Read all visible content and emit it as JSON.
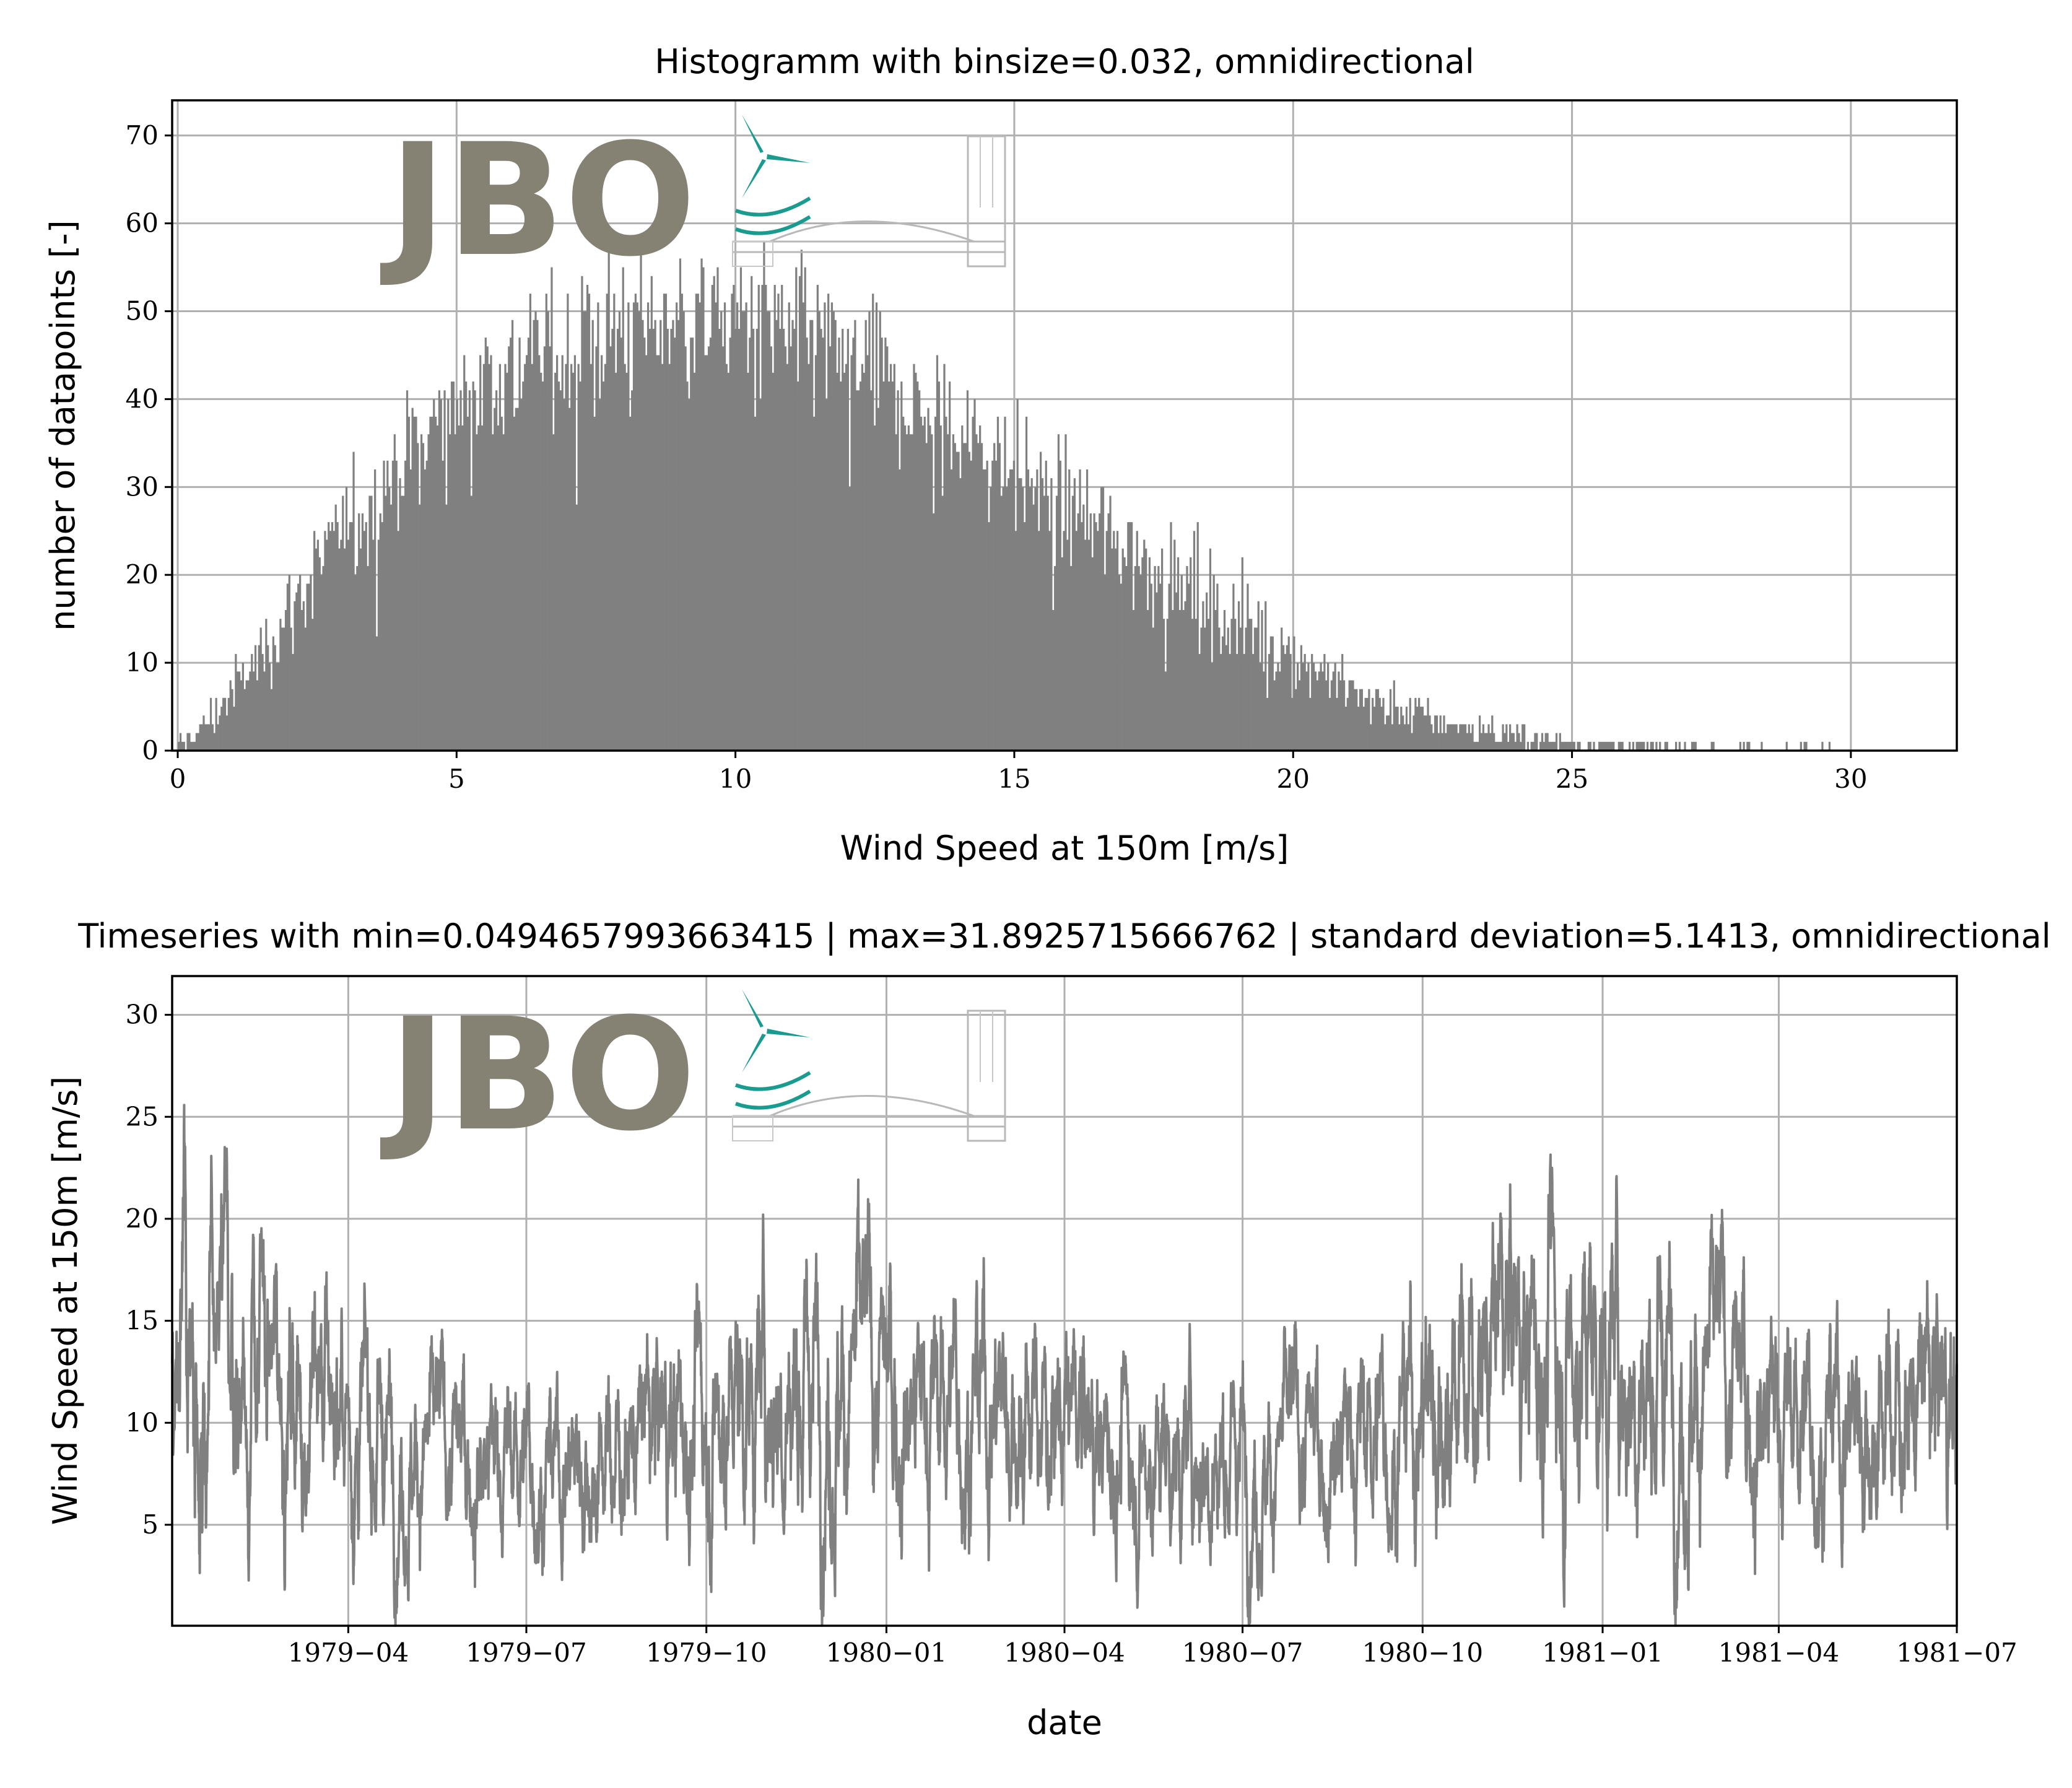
{
  "chart_data": [
    {
      "type": "bar",
      "title": "Histogramm with binsize=0.032, omnidirectional",
      "xlabel": "Wind Speed at 150m [m/s]",
      "ylabel": "number of datapoints [-]",
      "xlim": [
        -0.1,
        31.9
      ],
      "ylim": [
        0,
        74
      ],
      "xticks": [
        0,
        5,
        10,
        15,
        20,
        25,
        30
      ],
      "yticks": [
        0,
        10,
        20,
        30,
        40,
        50,
        60,
        70
      ],
      "grid": true,
      "bar_color": "#808080",
      "binsize": 0.032,
      "envelope_x": [
        0,
        0.5,
        1.0,
        1.5,
        2.0,
        2.5,
        3.0,
        3.5,
        4.0,
        4.5,
        5.0,
        5.5,
        6.0,
        6.5,
        7.0,
        7.5,
        8.0,
        8.5,
        9.0,
        9.5,
        10.0,
        10.5,
        11.0,
        11.5,
        12.0,
        12.5,
        13.0,
        13.5,
        14.0,
        14.5,
        15.0,
        15.5,
        16.0,
        16.5,
        17.0,
        17.5,
        18.0,
        18.5,
        19.0,
        19.5,
        20.0,
        20.5,
        21.0,
        21.5,
        22.0,
        22.5,
        23.0,
        23.5,
        24.0,
        24.5,
        25.0,
        25.5,
        26.0,
        26.5,
        27.0,
        27.5,
        28.0,
        28.5,
        29.0,
        29.5,
        30.0
      ],
      "envelope_y": [
        0.5,
        3,
        7,
        11,
        16,
        21,
        25,
        29,
        33,
        36,
        40,
        42,
        44,
        45,
        46,
        47,
        48,
        49,
        49,
        49,
        49,
        48,
        47,
        46,
        44,
        42,
        40,
        38,
        36,
        34,
        32,
        29,
        27,
        25,
        23,
        21,
        19,
        17,
        15,
        13,
        11,
        9,
        7,
        5.5,
        4.5,
        3.5,
        2.8,
        2.2,
        1.6,
        1.2,
        0.9,
        0.7,
        0.5,
        0.4,
        0.3,
        0.2,
        0.15,
        0.1,
        0.07,
        0.05,
        0.02
      ]
    },
    {
      "type": "line",
      "title": "Timeseries with min=0.0494657993663415 | max=31.8925715666762 | standard deviation=5.1413, omnidirectional",
      "xlabel": "date",
      "ylabel": "Wind Speed at 150m [m/s]",
      "xlim": [
        "1979-01-01",
        "1981-07-01"
      ],
      "ylim": [
        0.05,
        31.9
      ],
      "xticks": [
        "1979−04",
        "1979−07",
        "1979−10",
        "1980−01",
        "1980−04",
        "1980−07",
        "1980−10",
        "1981−01",
        "1981−04",
        "1981−07"
      ],
      "xtick_dates": [
        "1979-04-01",
        "1979-07-01",
        "1979-10-01",
        "1980-01-01",
        "1980-04-01",
        "1980-07-01",
        "1980-10-01",
        "1981-01-01",
        "1981-04-01",
        "1981-07-01"
      ],
      "yticks": [
        5,
        10,
        15,
        20,
        25,
        30
      ],
      "grid": true,
      "line_color": "#808080",
      "monthly_mean": [
        {
          "date": "1979-01-15",
          "y": 13.5
        },
        {
          "date": "1979-02-15",
          "y": 12.5
        },
        {
          "date": "1979-03-15",
          "y": 12.0
        },
        {
          "date": "1979-04-15",
          "y": 9.5
        },
        {
          "date": "1979-05-15",
          "y": 8.5
        },
        {
          "date": "1979-06-15",
          "y": 8.5
        },
        {
          "date": "1979-07-15",
          "y": 8.0
        },
        {
          "date": "1979-08-15",
          "y": 8.5
        },
        {
          "date": "1979-09-15",
          "y": 10.0
        },
        {
          "date": "1979-10-15",
          "y": 11.5
        },
        {
          "date": "1979-11-15",
          "y": 12.5
        },
        {
          "date": "1979-12-15",
          "y": 12.5
        },
        {
          "date": "1980-01-15",
          "y": 11.0
        },
        {
          "date": "1980-02-15",
          "y": 11.5
        },
        {
          "date": "1980-03-15",
          "y": 11.0
        },
        {
          "date": "1980-04-15",
          "y": 9.0
        },
        {
          "date": "1980-05-15",
          "y": 8.5
        },
        {
          "date": "1980-06-15",
          "y": 9.0
        },
        {
          "date": "1980-07-15",
          "y": 8.5
        },
        {
          "date": "1980-08-15",
          "y": 9.0
        },
        {
          "date": "1980-09-15",
          "y": 10.0
        },
        {
          "date": "1980-10-15",
          "y": 12.0
        },
        {
          "date": "1980-11-15",
          "y": 14.0
        },
        {
          "date": "1980-12-15",
          "y": 14.5
        },
        {
          "date": "1981-01-15",
          "y": 13.5
        },
        {
          "date": "1981-02-15",
          "y": 12.5
        },
        {
          "date": "1981-03-15",
          "y": 11.5
        },
        {
          "date": "1981-04-15",
          "y": 10.0
        },
        {
          "date": "1981-05-15",
          "y": 10.5
        },
        {
          "date": "1981-06-15",
          "y": 11.0
        }
      ]
    }
  ],
  "logo": {
    "text": "JBO",
    "text_color": "#858274",
    "accent_color": "#1a9b8f",
    "icon": "wind-turbine-bridge-icon"
  }
}
